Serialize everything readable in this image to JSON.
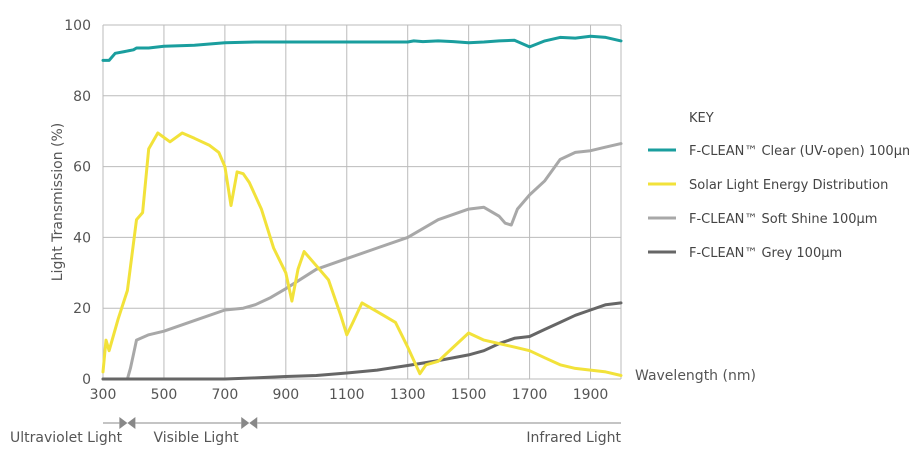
{
  "chart_data": {
    "type": "line",
    "ylabel": "Light Transmission (%)",
    "xlabel": "Wavelength (nm)",
    "xlim": [
      300,
      2000
    ],
    "ylim": [
      0,
      100
    ],
    "x_ticks": [
      "300",
      "500",
      "700",
      "900",
      "1100",
      "1300",
      "1500",
      "1700",
      "1900"
    ],
    "y_ticks": [
      "0",
      "20",
      "40",
      "60",
      "80",
      "100"
    ],
    "grid": true,
    "legend": {
      "title": "KEY",
      "placement": "right"
    },
    "series": [
      {
        "name": "F-CLEAN™ Clear (UV-open) 100µm",
        "color": "#1a9e9e",
        "x": [
          300,
          320,
          340,
          370,
          400,
          410,
          450,
          500,
          600,
          700,
          800,
          900,
          1000,
          1100,
          1200,
          1300,
          1320,
          1350,
          1400,
          1450,
          1500,
          1550,
          1600,
          1650,
          1700,
          1750,
          1800,
          1850,
          1900,
          1950,
          2000
        ],
        "values": [
          90,
          90,
          92,
          92.5,
          93,
          93.5,
          93.5,
          94,
          94.3,
          95,
          95.2,
          95.2,
          95.2,
          95.2,
          95.2,
          95.2,
          95.5,
          95.3,
          95.5,
          95.3,
          95,
          95.2,
          95.5,
          95.7,
          93.8,
          95.5,
          96.5,
          96.3,
          96.8,
          96.5,
          95.5
        ]
      },
      {
        "name": "Solar Light Energy Distribution",
        "color": "#f2e23a",
        "x": [
          300,
          310,
          320,
          350,
          380,
          410,
          430,
          450,
          480,
          520,
          560,
          600,
          650,
          680,
          700,
          720,
          740,
          760,
          780,
          820,
          860,
          900,
          920,
          940,
          960,
          1000,
          1040,
          1080,
          1100,
          1120,
          1150,
          1200,
          1260,
          1300,
          1340,
          1360,
          1400,
          1450,
          1500,
          1550,
          1600,
          1650,
          1700,
          1750,
          1800,
          1850,
          1900,
          1950,
          2000
        ],
        "values": [
          2,
          11,
          8,
          17,
          25,
          45,
          47,
          65,
          69.5,
          67,
          69.5,
          68,
          66,
          64,
          60,
          49,
          58.5,
          58,
          55.5,
          48,
          37,
          30,
          22,
          31,
          36,
          32,
          28,
          18,
          12.5,
          16,
          21.5,
          19,
          16,
          9,
          1.5,
          4,
          5,
          9,
          13,
          11,
          10,
          9,
          8,
          6,
          4,
          3,
          2.5,
          2,
          1
        ]
      },
      {
        "name": "F-CLEAN™ Soft Shine 100µm",
        "color": "#a8a8a8",
        "x": [
          300,
          380,
          390,
          400,
          410,
          450,
          500,
          600,
          700,
          760,
          800,
          850,
          900,
          1000,
          1100,
          1200,
          1300,
          1400,
          1500,
          1550,
          1600,
          1620,
          1640,
          1660,
          1680,
          1700,
          1750,
          1800,
          1850,
          1900,
          1950,
          2000
        ],
        "values": [
          0,
          0,
          3,
          7,
          11,
          12.5,
          13.5,
          16.5,
          19.5,
          20,
          21,
          23,
          25.5,
          31,
          34,
          37,
          40,
          45,
          48,
          48.5,
          46,
          44,
          43.5,
          48,
          50,
          52,
          56,
          62,
          64,
          64.5,
          65.5,
          66.5
        ]
      },
      {
        "name": "F-CLEAN™ Grey 100µm",
        "color": "#666666",
        "x": [
          300,
          700,
          800,
          900,
          1000,
          1100,
          1200,
          1300,
          1400,
          1500,
          1550,
          1600,
          1650,
          1700,
          1750,
          1800,
          1850,
          1900,
          1950,
          2000
        ],
        "values": [
          0,
          0,
          0.3,
          0.7,
          1,
          1.7,
          2.5,
          3.8,
          5.2,
          6.8,
          8,
          10,
          11.5,
          12,
          14,
          16,
          18,
          19.5,
          21,
          21.5
        ]
      }
    ],
    "bands": [
      {
        "label": "Ultraviolet Light",
        "from": 300,
        "to": 380
      },
      {
        "label": "Visible Light",
        "from": 380,
        "to": 780
      },
      {
        "label": "Infrared Light",
        "from": 780,
        "to": 2000
      }
    ]
  }
}
